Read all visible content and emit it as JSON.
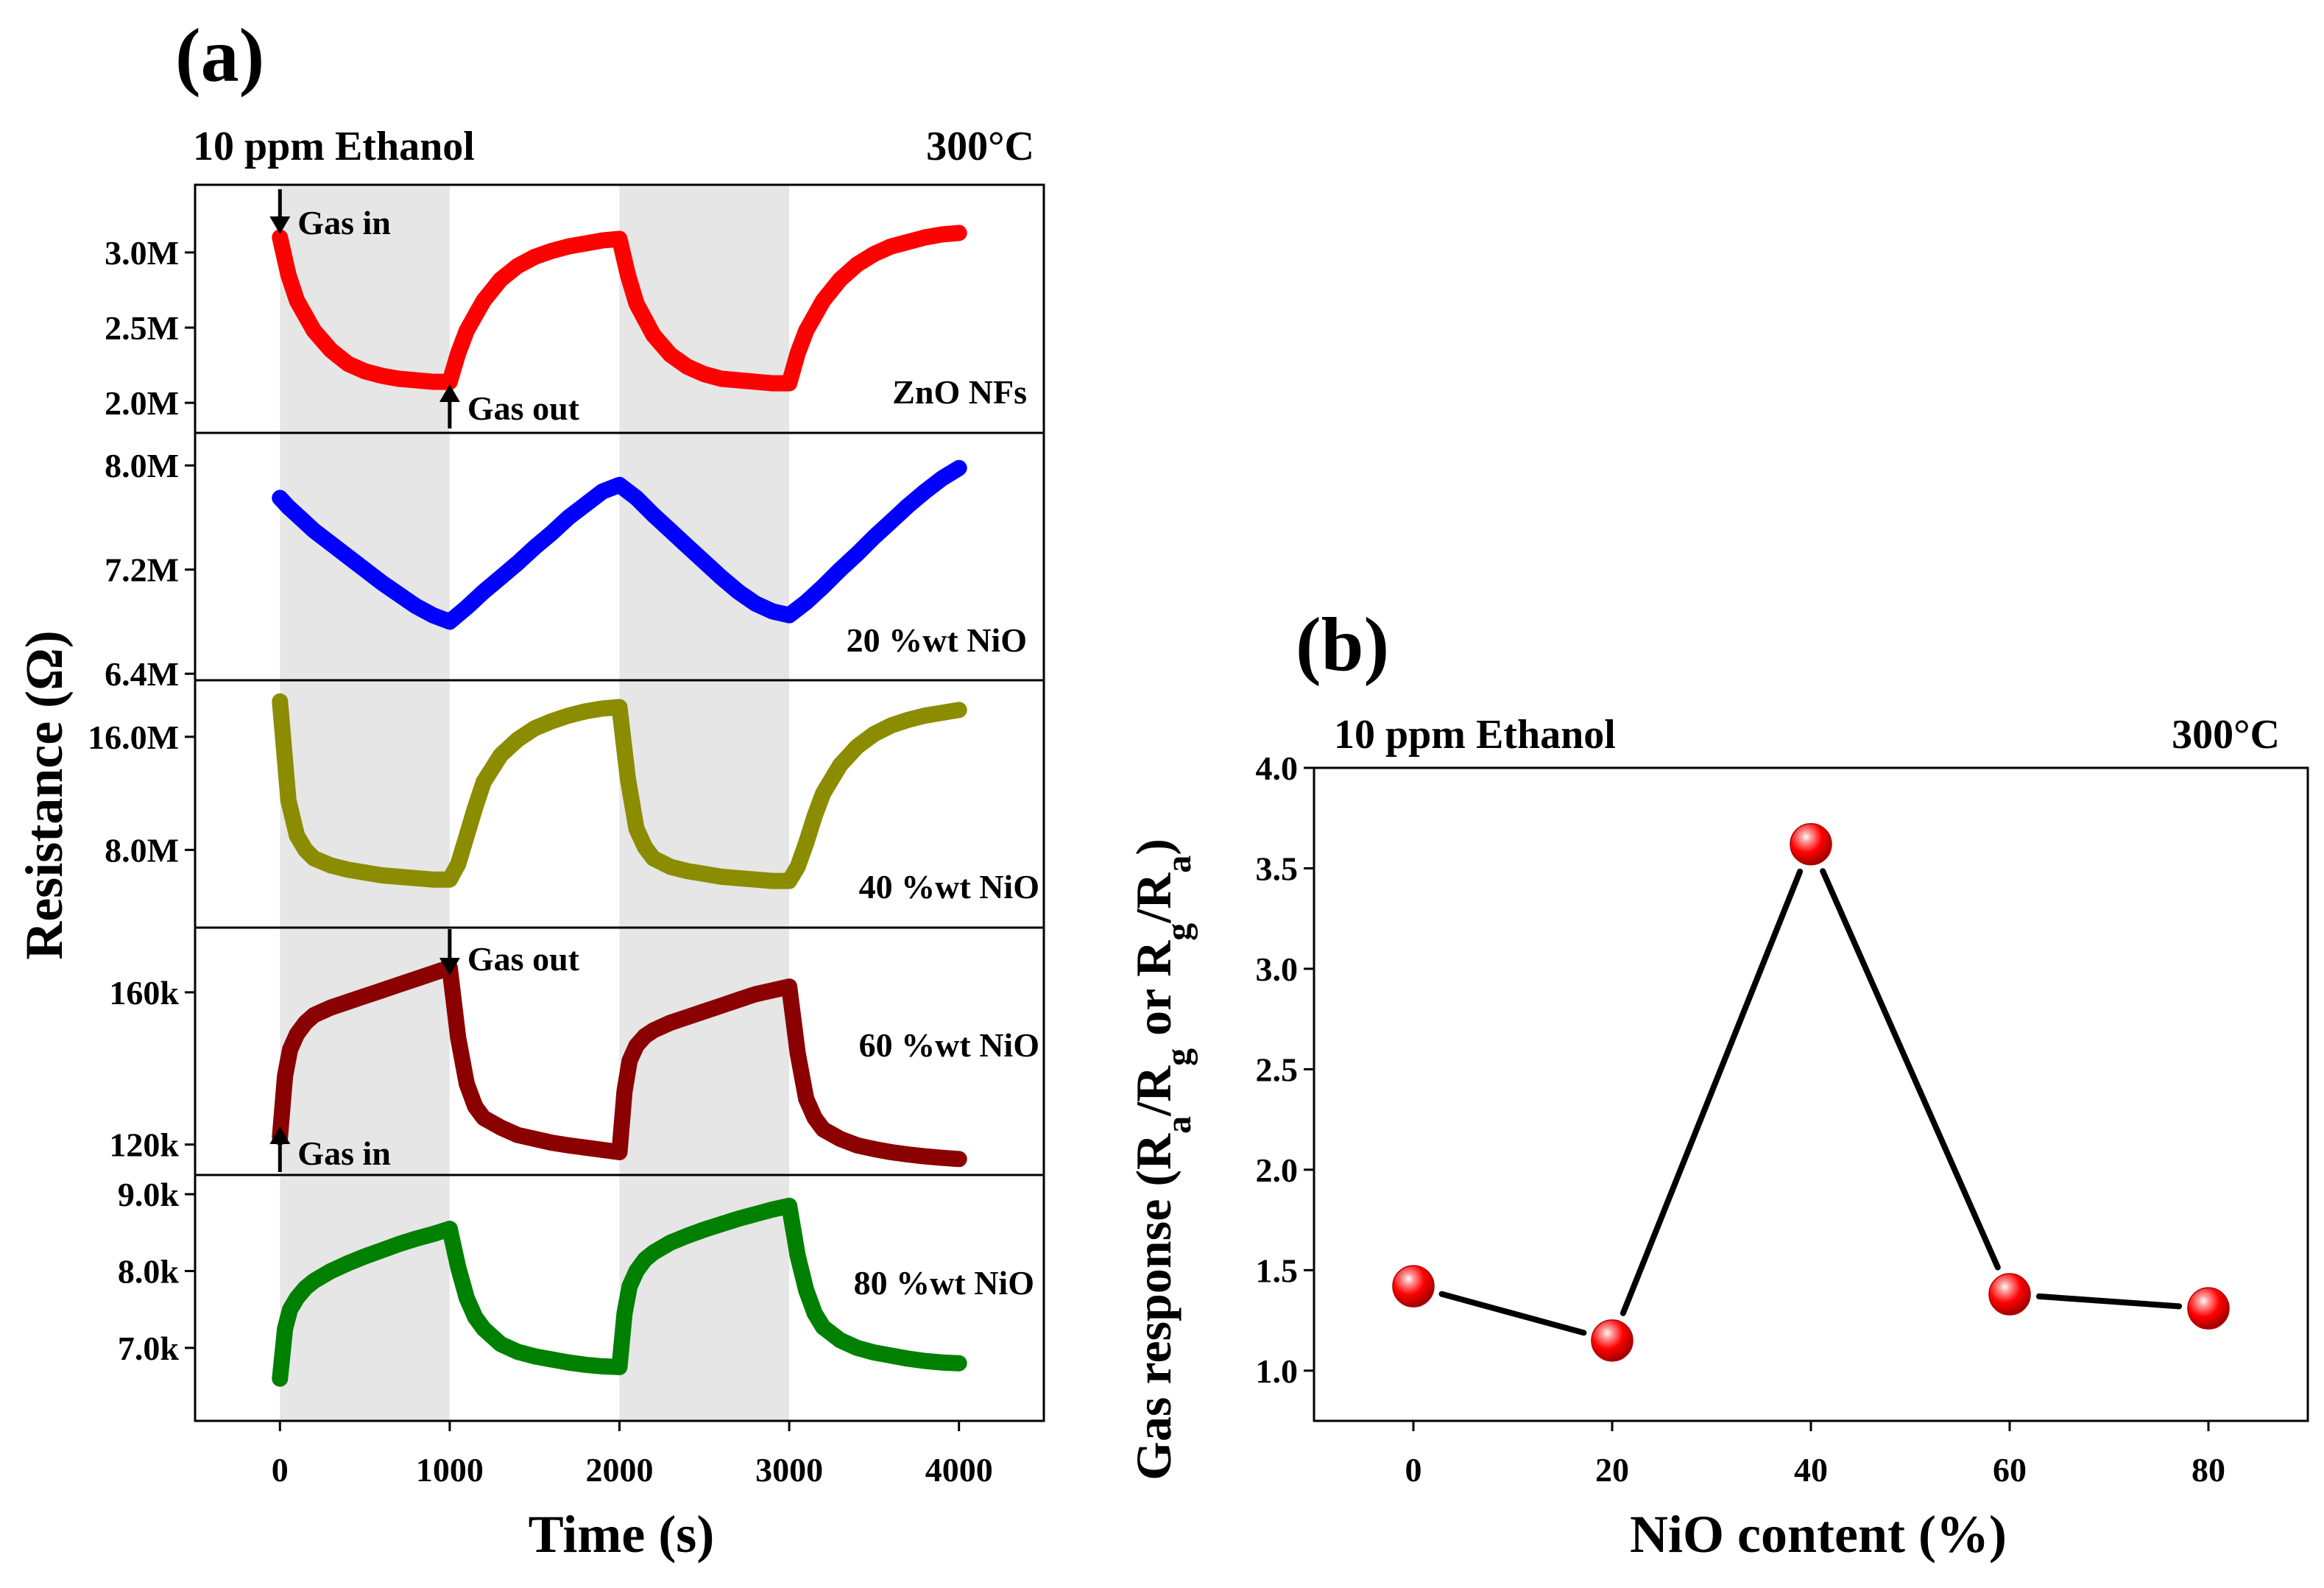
{
  "figure": {
    "panel_a_label": "(a)",
    "panel_b_label": "(b)"
  },
  "chart_data": [
    {
      "type": "line",
      "panel": "(a)",
      "header_left": "10 ppm Ethanol",
      "header_right": "300°C",
      "xlabel": "Time (s)",
      "ylabel": "Resistance (Ω)",
      "xlim": [
        -500,
        4500
      ],
      "x_ticks": [
        0,
        1000,
        2000,
        3000,
        4000
      ],
      "x_tick_labels": [
        "0",
        "1000",
        "2000",
        "3000",
        "4000"
      ],
      "gas_exposure_windows": [
        [
          0,
          1000
        ],
        [
          2000,
          3000
        ]
      ],
      "shade_color": "#e6e6e6",
      "subplots": [
        {
          "label": "ZnO NFs",
          "color": "#ff0000",
          "ylim": [
            1.8,
            3.45
          ],
          "y_ticks": [
            2.0,
            2.5,
            3.0
          ],
          "y_tick_labels": [
            "2.0M",
            "2.5M",
            "3.0M"
          ],
          "x": [
            0,
            50,
            100,
            200,
            300,
            400,
            500,
            600,
            700,
            800,
            900,
            1000,
            1050,
            1100,
            1200,
            1300,
            1400,
            1500,
            1600,
            1700,
            1800,
            1900,
            2000,
            2050,
            2100,
            2200,
            2300,
            2400,
            2500,
            2600,
            2700,
            2800,
            2900,
            3000,
            3050,
            3100,
            3200,
            3300,
            3400,
            3500,
            3600,
            3700,
            3800,
            3900,
            4000
          ],
          "values": [
            3.1,
            2.85,
            2.68,
            2.48,
            2.35,
            2.26,
            2.21,
            2.18,
            2.16,
            2.15,
            2.14,
            2.14,
            2.33,
            2.48,
            2.68,
            2.82,
            2.91,
            2.97,
            3.01,
            3.04,
            3.06,
            3.08,
            3.09,
            2.85,
            2.66,
            2.45,
            2.32,
            2.24,
            2.19,
            2.16,
            2.15,
            2.14,
            2.13,
            2.13,
            2.33,
            2.48,
            2.68,
            2.82,
            2.92,
            2.99,
            3.04,
            3.07,
            3.1,
            3.12,
            3.13
          ],
          "annotations": [
            {
              "text": "Gas in",
              "x": 0,
              "arrow": "down"
            },
            {
              "text": "Gas out",
              "x": 1000,
              "arrow": "up"
            }
          ]
        },
        {
          "label": "20 %wt NiO",
          "color": "#0000ff",
          "ylim": [
            6.35,
            8.25
          ],
          "y_ticks": [
            6.4,
            7.2,
            8.0
          ],
          "y_tick_labels": [
            "6.4M",
            "7.2M",
            "8.0M"
          ],
          "x": [
            0,
            50,
            100,
            200,
            300,
            400,
            500,
            600,
            700,
            800,
            900,
            1000,
            1100,
            1200,
            1300,
            1400,
            1500,
            1600,
            1700,
            1800,
            1900,
            2000,
            2100,
            2200,
            2300,
            2400,
            2500,
            2600,
            2700,
            2800,
            2900,
            3000,
            3100,
            3200,
            3300,
            3400,
            3500,
            3600,
            3700,
            3800,
            3900,
            4000
          ],
          "values": [
            7.75,
            7.68,
            7.62,
            7.5,
            7.4,
            7.3,
            7.2,
            7.1,
            7.01,
            6.92,
            6.85,
            6.8,
            6.91,
            7.03,
            7.14,
            7.25,
            7.37,
            7.48,
            7.6,
            7.7,
            7.8,
            7.85,
            7.75,
            7.62,
            7.5,
            7.38,
            7.26,
            7.14,
            7.03,
            6.94,
            6.88,
            6.85,
            6.95,
            7.07,
            7.2,
            7.32,
            7.45,
            7.57,
            7.69,
            7.8,
            7.9,
            7.98
          ],
          "annotations": []
        },
        {
          "label": "40 %wt NiO",
          "color": "#8c8c00",
          "ylim": [
            2.5,
            20.0
          ],
          "y_ticks": [
            8.0,
            16.0
          ],
          "y_tick_labels": [
            "8.0M",
            "16.0M"
          ],
          "x": [
            0,
            50,
            100,
            150,
            200,
            300,
            400,
            500,
            600,
            700,
            800,
            900,
            1000,
            1050,
            1100,
            1150,
            1200,
            1300,
            1400,
            1500,
            1600,
            1700,
            1800,
            1900,
            2000,
            2050,
            2100,
            2150,
            2200,
            2300,
            2400,
            2500,
            2600,
            2700,
            2800,
            2900,
            3000,
            3050,
            3100,
            3150,
            3200,
            3300,
            3400,
            3500,
            3600,
            3700,
            3800,
            3900,
            4000
          ],
          "values": [
            18.5,
            11.5,
            9.0,
            8.0,
            7.4,
            6.9,
            6.6,
            6.4,
            6.2,
            6.1,
            6.0,
            5.9,
            5.9,
            7.0,
            9.0,
            11.0,
            12.8,
            14.7,
            15.8,
            16.6,
            17.1,
            17.5,
            17.8,
            18.0,
            18.1,
            13.0,
            9.5,
            8.2,
            7.4,
            6.8,
            6.5,
            6.3,
            6.1,
            6.0,
            5.9,
            5.8,
            5.8,
            6.8,
            8.5,
            10.4,
            12.0,
            14.0,
            15.3,
            16.2,
            16.8,
            17.2,
            17.5,
            17.7,
            17.9
          ],
          "annotations": []
        },
        {
          "label": "60 %wt NiO",
          "color": "#8b0000",
          "ylim": [
            112,
            177
          ],
          "y_ticks": [
            120,
            160
          ],
          "y_tick_labels": [
            "120k",
            "160k"
          ],
          "x": [
            0,
            30,
            60,
            100,
            150,
            200,
            300,
            400,
            500,
            600,
            700,
            800,
            900,
            1000,
            1050,
            1100,
            1150,
            1200,
            1300,
            1400,
            1500,
            1600,
            1700,
            1800,
            1900,
            2000,
            2030,
            2060,
            2100,
            2150,
            2200,
            2300,
            2400,
            2500,
            2600,
            2700,
            2800,
            2900,
            3000,
            3050,
            3100,
            3150,
            3200,
            3300,
            3400,
            3500,
            3600,
            3700,
            3800,
            3900,
            4000
          ],
          "values": [
            122,
            138,
            145,
            149,
            152,
            154,
            156,
            157.5,
            159,
            160.5,
            162,
            163.5,
            165,
            166.5,
            148,
            136,
            130,
            127,
            124.5,
            122.5,
            121.5,
            120.5,
            119.8,
            119.2,
            118.6,
            118,
            134,
            142,
            146,
            148.5,
            150,
            152,
            153.5,
            155,
            156.5,
            158,
            159.5,
            160.5,
            161.5,
            144,
            132,
            127,
            124,
            121.5,
            119.8,
            118.8,
            118,
            117.4,
            116.9,
            116.5,
            116.2
          ],
          "annotations": [
            {
              "text": "Gas out",
              "x": 1000,
              "arrow": "down"
            },
            {
              "text": "Gas in",
              "x": 0,
              "arrow": "up"
            }
          ]
        },
        {
          "label": "80 %wt NiO",
          "color": "#008000",
          "ylim": [
            6.05,
            9.25
          ],
          "y_ticks": [
            7.0,
            8.0,
            9.0
          ],
          "y_tick_labels": [
            "7.0k",
            "8.0k",
            "9.0k"
          ],
          "x": [
            0,
            30,
            60,
            100,
            150,
            200,
            300,
            400,
            500,
            600,
            700,
            800,
            900,
            1000,
            1050,
            1100,
            1150,
            1200,
            1300,
            1400,
            1500,
            1600,
            1700,
            1800,
            1900,
            2000,
            2030,
            2060,
            2100,
            2150,
            2200,
            2300,
            2400,
            2500,
            2600,
            2700,
            2800,
            2900,
            3000,
            3050,
            3100,
            3150,
            3200,
            3300,
            3400,
            3500,
            3600,
            3700,
            3800,
            3900,
            4000
          ],
          "values": [
            6.6,
            7.25,
            7.5,
            7.65,
            7.78,
            7.87,
            8.0,
            8.1,
            8.19,
            8.27,
            8.35,
            8.42,
            8.48,
            8.55,
            8.05,
            7.65,
            7.4,
            7.25,
            7.05,
            6.95,
            6.89,
            6.85,
            6.81,
            6.78,
            6.76,
            6.75,
            7.45,
            7.8,
            8.0,
            8.15,
            8.24,
            8.37,
            8.46,
            8.54,
            8.61,
            8.68,
            8.74,
            8.8,
            8.85,
            8.2,
            7.75,
            7.45,
            7.27,
            7.1,
            7.0,
            6.94,
            6.9,
            6.86,
            6.83,
            6.81,
            6.8
          ],
          "annotations": []
        }
      ]
    },
    {
      "type": "line",
      "panel": "(b)",
      "header_left": "10 ppm Ethanol",
      "header_right": "300°C",
      "xlabel": "NiO content (%)",
      "ylabel": "Gas response (Ra/Rg or Rg/Ra)",
      "xlim": [
        -10,
        90
      ],
      "ylim": [
        0.75,
        4.0
      ],
      "x_ticks": [
        0,
        20,
        40,
        60,
        80
      ],
      "x_tick_labels": [
        "0",
        "20",
        "40",
        "60",
        "80"
      ],
      "y_ticks": [
        1.0,
        1.5,
        2.0,
        2.5,
        3.0,
        3.5,
        4.0
      ],
      "y_tick_labels": [
        "1.0",
        "1.5",
        "2.0",
        "2.5",
        "3.0",
        "3.5",
        "4.0"
      ],
      "x": [
        0,
        20,
        40,
        60,
        80
      ],
      "values": [
        1.42,
        1.15,
        3.62,
        1.38,
        1.31
      ],
      "marker_color": "#ff0000",
      "line_color": "#000000"
    }
  ]
}
